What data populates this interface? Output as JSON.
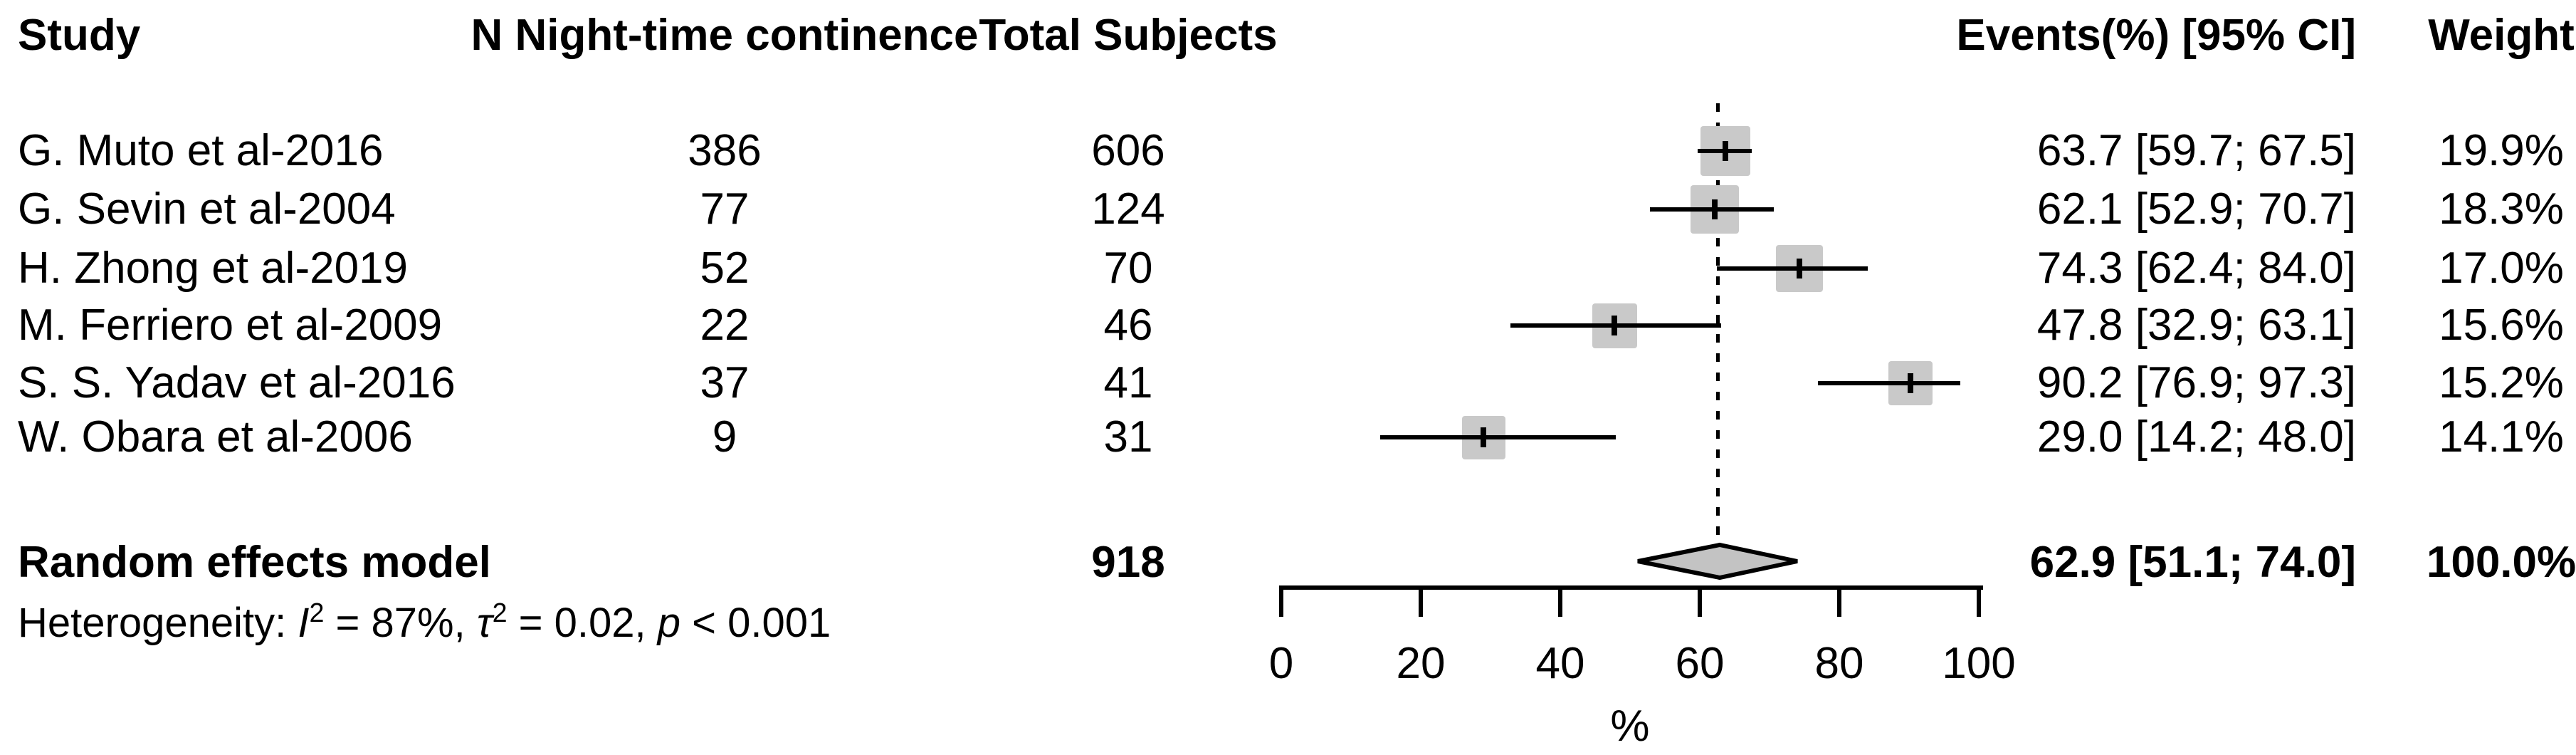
{
  "chart_data": {
    "type": "forest",
    "title": "",
    "columns": {
      "study": "Study",
      "n": "N Night-time continence",
      "total": "Total Subjects",
      "events": "Events(%) [95% CI]",
      "weight": "Weight"
    },
    "studies": [
      {
        "study": "G. Muto et al-2016",
        "n": "386",
        "total": "606",
        "events_ci": "63.7 [59.7; 67.5]",
        "weight": "19.9%",
        "est": 63.7,
        "lo": 59.7,
        "hi": 67.5,
        "weight_val": 19.9
      },
      {
        "study": "G. Sevin et al-2004",
        "n": "77",
        "total": "124",
        "events_ci": "62.1 [52.9; 70.7]",
        "weight": "18.3%",
        "est": 62.1,
        "lo": 52.9,
        "hi": 70.7,
        "weight_val": 18.3
      },
      {
        "study": "H. Zhong et al-2019",
        "n": "52",
        "total": "70",
        "events_ci": "74.3 [62.4; 84.0]",
        "weight": "17.0%",
        "est": 74.3,
        "lo": 62.4,
        "hi": 84.0,
        "weight_val": 17.0
      },
      {
        "study": "M. Ferriero et al-2009",
        "n": "22",
        "total": "46",
        "events_ci": "47.8 [32.9; 63.1]",
        "weight": "15.6%",
        "est": 47.8,
        "lo": 32.9,
        "hi": 63.1,
        "weight_val": 15.6
      },
      {
        "study": "S. S. Yadav et al-2016",
        "n": "37",
        "total": "41",
        "events_ci": "90.2 [76.9; 97.3]",
        "weight": "15.2%",
        "est": 90.2,
        "lo": 76.9,
        "hi": 97.3,
        "weight_val": 15.2
      },
      {
        "study": "W. Obara et al-2006",
        "n": "9",
        "total": "31",
        "events_ci": "29.0 [14.2; 48.0]",
        "weight": "14.1%",
        "est": 29.0,
        "lo": 14.2,
        "hi": 48.0,
        "weight_val": 14.1
      }
    ],
    "summary": {
      "label": "Random effects model",
      "total": "918",
      "events_ci": "62.9 [51.1; 74.0]",
      "weight": "100.0%",
      "est": 62.9,
      "lo": 51.1,
      "hi": 74.0
    },
    "heterogeneity": {
      "full_text": "Heterogeneity: I2 = 87%, t2 = 0.02, p < 0.001",
      "segments": [
        {
          "text": "Heterogeneity: ",
          "italic": false,
          "sup": false
        },
        {
          "text": "I",
          "italic": true,
          "sup": false
        },
        {
          "text": "2",
          "italic": false,
          "sup": true
        },
        {
          "text": " = 87%, ",
          "italic": false,
          "sup": false
        },
        {
          "text": "τ",
          "italic": true,
          "sup": false
        },
        {
          "text": "2",
          "italic": false,
          "sup": true
        },
        {
          "text": " = 0.02, ",
          "italic": false,
          "sup": false
        },
        {
          "text": "p",
          "italic": true,
          "sup": false
        },
        {
          "text": " < 0.001",
          "italic": false,
          "sup": false
        }
      ]
    },
    "axis": {
      "ticks": [
        "0",
        "20",
        "40",
        "60",
        "80",
        "100"
      ],
      "tick_values": [
        0,
        20,
        40,
        60,
        80,
        100
      ],
      "xlabel": "%",
      "xlim": [
        0,
        100
      ],
      "reference_line": 62.9
    },
    "square_sizes": [
      70,
      68,
      66,
      63,
      62,
      61
    ]
  },
  "colors": {
    "square": "#c9c9c9",
    "diamond_fill": "#c3c3c3",
    "line": "#000000",
    "text": "#000000",
    "background": "#ffffff"
  }
}
